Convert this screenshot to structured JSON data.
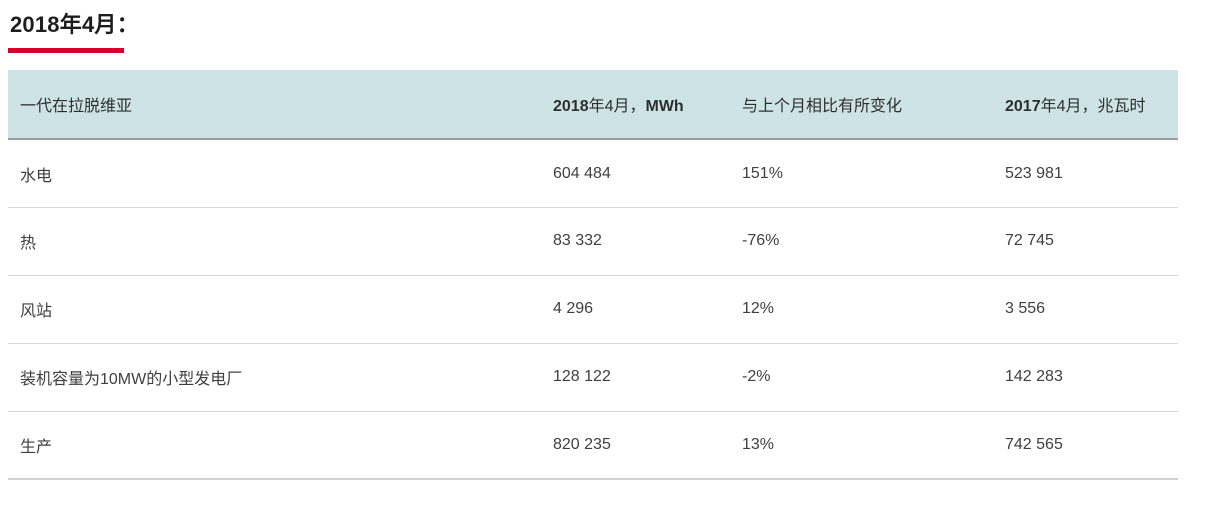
{
  "page": {
    "title": "2018年4月：",
    "accent_color": "#d6002a"
  },
  "table": {
    "header": {
      "generation_label": "一代在拉脱维亚",
      "month_2018_bold": "2018",
      "month_2018_cjk": "年4月，",
      "month_2018_unit": "MWh",
      "change_label": "与上个月相比有所变化",
      "month_2017_bold": "2017",
      "month_2017_cjk": "年4月，兆瓦时"
    },
    "rows": [
      {
        "label": "水电",
        "mwh_2018": "604 484",
        "change": "151%",
        "mwh_2017": "523 981"
      },
      {
        "label": "热",
        "mwh_2018": "83 332",
        "change": "-76%",
        "mwh_2017": "72 745"
      },
      {
        "label": "风站",
        "mwh_2018": "4 296",
        "change": "12%",
        "mwh_2017": "3 556"
      },
      {
        "label": "装机容量为10MW的小型发电厂",
        "mwh_2018": "128 122",
        "change": "-2%",
        "mwh_2017": "142 283"
      },
      {
        "label": "生产",
        "mwh_2018": "820 235",
        "change": "13%",
        "mwh_2017": "742 565"
      }
    ]
  }
}
